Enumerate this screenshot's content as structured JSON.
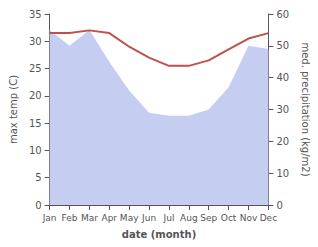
{
  "chart_data": {
    "type": "line",
    "xlabel": "date (month)",
    "ylabel": "max temp (C)",
    "y2label": "med. precipitation (kg/m2)",
    "categories": [
      "Jan",
      "Feb",
      "Mar",
      "Apr",
      "May",
      "Jun",
      "Jul",
      "Aug",
      "Sep",
      "Oct",
      "Nov",
      "Dec"
    ],
    "series": [
      {
        "type": "area",
        "axis": "y2",
        "color": "#c5cdf0",
        "values": [
          55.0,
          50.0,
          55.0,
          45.0,
          36.0,
          29.0,
          28.0,
          28.0,
          30.0,
          37.0,
          50.0,
          49.0
        ]
      },
      {
        "type": "line",
        "color": "#c0504d",
        "values": [
          31.5,
          31.5,
          32.0,
          31.5,
          29.0,
          27.0,
          25.5,
          25.5,
          26.5,
          28.5,
          30.5,
          31.5
        ]
      }
    ],
    "ylim": [
      0,
      35
    ],
    "yticks": [
      0,
      5,
      10,
      15,
      20,
      25,
      30,
      35
    ],
    "y2lim": [
      0,
      60
    ],
    "y2ticks": [
      0,
      10,
      20,
      30,
      40,
      50,
      60
    ],
    "grid": false
  }
}
